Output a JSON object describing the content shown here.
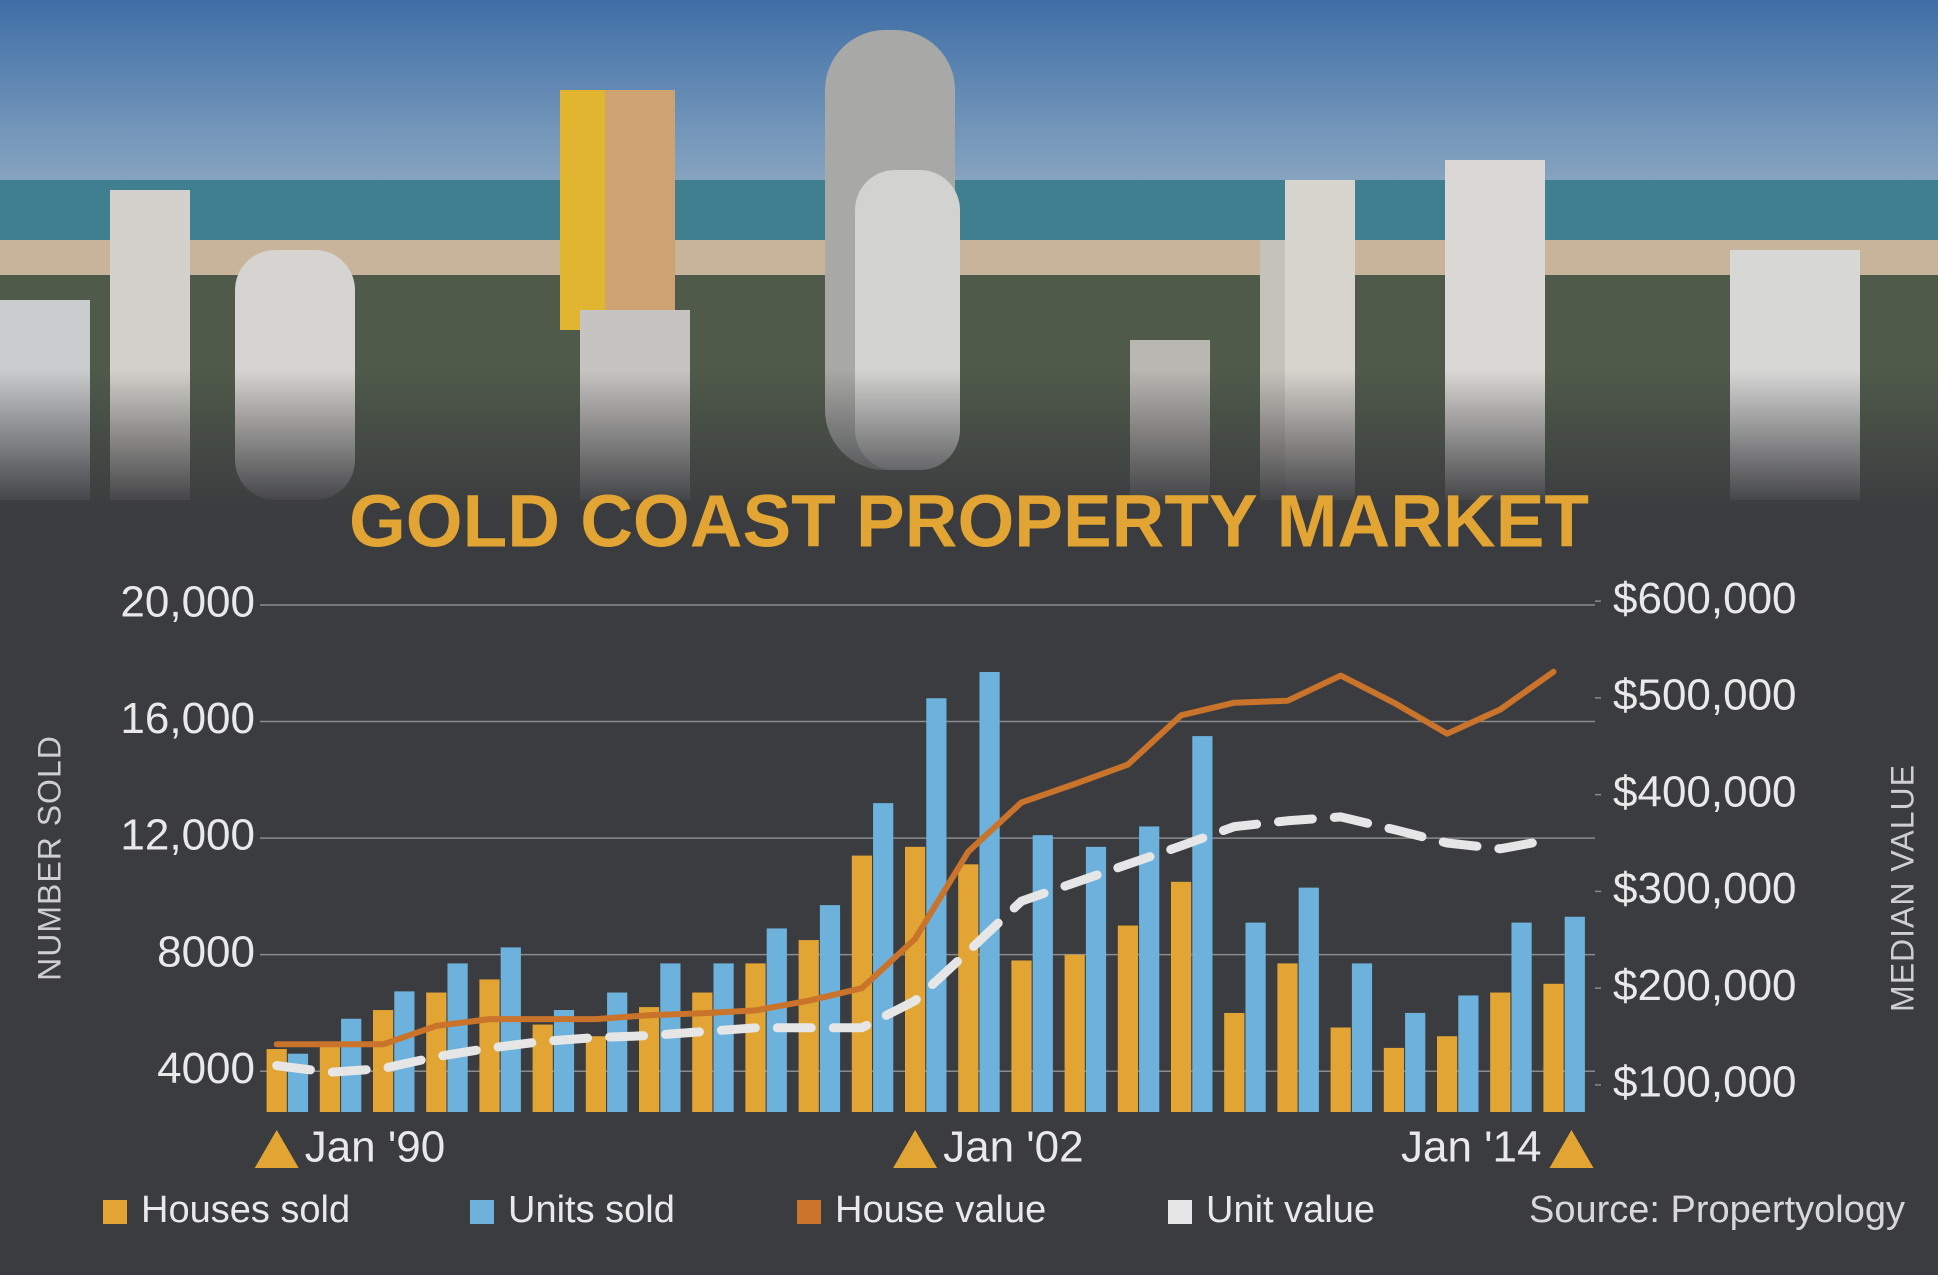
{
  "chart_data": {
    "type": "bar",
    "title": "GOLD COAST PROPERTY MARKET",
    "y_label": "NUMBER SOLD",
    "y2_label": "MEDIAN VALUE",
    "source": "Source: Propertyology",
    "categories": [
      "Jan '90",
      null,
      null,
      null,
      null,
      null,
      null,
      null,
      null,
      null,
      null,
      null,
      "Jan '02",
      null,
      null,
      null,
      null,
      null,
      null,
      null,
      null,
      null,
      null,
      null,
      "Jan '14"
    ],
    "series": [
      {
        "name": "Houses sold",
        "type": "bar",
        "color": "#e2a533",
        "values": [
          4760,
          4970,
          6100,
          6700,
          7150,
          5600,
          5200,
          6200,
          6700,
          7700,
          8500,
          11400,
          11700,
          11100,
          7800,
          8000,
          9000,
          10500,
          6000,
          7700,
          5500,
          4800,
          5200,
          6700,
          7000
        ]
      },
      {
        "name": "Units sold",
        "type": "bar",
        "color": "#6db2dc",
        "values": [
          4600,
          5800,
          6740,
          7700,
          8250,
          6100,
          6700,
          7700,
          7700,
          8900,
          9700,
          13200,
          16800,
          17700,
          12100,
          11700,
          12400,
          15500,
          9100,
          10300,
          7700,
          6000,
          6600,
          9100,
          9300
        ]
      },
      {
        "name": "House value",
        "type": "line",
        "axis": "y2",
        "color": "#c9732b",
        "style": "solid",
        "values": [
          142000,
          142000,
          142000,
          161000,
          168000,
          168000,
          168000,
          172000,
          174000,
          177000,
          187000,
          200000,
          251000,
          341000,
          392000,
          411000,
          431000,
          482000,
          495000,
          497000,
          523000,
          495000,
          463000,
          488000,
          527000
        ]
      },
      {
        "name": "Unit value",
        "type": "line",
        "axis": "y2",
        "color": "#e6e6e6",
        "style": "dashed",
        "values": [
          120000,
          113000,
          117000,
          129000,
          138000,
          145000,
          149000,
          151000,
          155000,
          159000,
          159000,
          159000,
          187000,
          238000,
          290000,
          309000,
          328000,
          347000,
          367000,
          373000,
          377000,
          364000,
          350000,
          344000,
          354000
        ]
      }
    ],
    "ylim": [
      2600,
      20000
    ],
    "yticks": [
      4000,
      8000,
      {
        "value": 12000,
        "label": "12,000"
      },
      {
        "value": 16000,
        "label": "16,000"
      },
      {
        "value": 20000,
        "label": "20,000"
      }
    ],
    "y2lim": [
      72000,
      596000
    ],
    "y2ticks": [
      {
        "value": 100000,
        "label": "$100,000"
      },
      {
        "value": 200000,
        "label": "$200,000"
      },
      {
        "value": 300000,
        "label": "$300,000"
      },
      {
        "value": 400000,
        "label": "$400,000"
      },
      {
        "value": 500000,
        "label": "$500,000"
      },
      {
        "value": 600000,
        "label": "$600,000"
      }
    ],
    "grid": true
  }
}
